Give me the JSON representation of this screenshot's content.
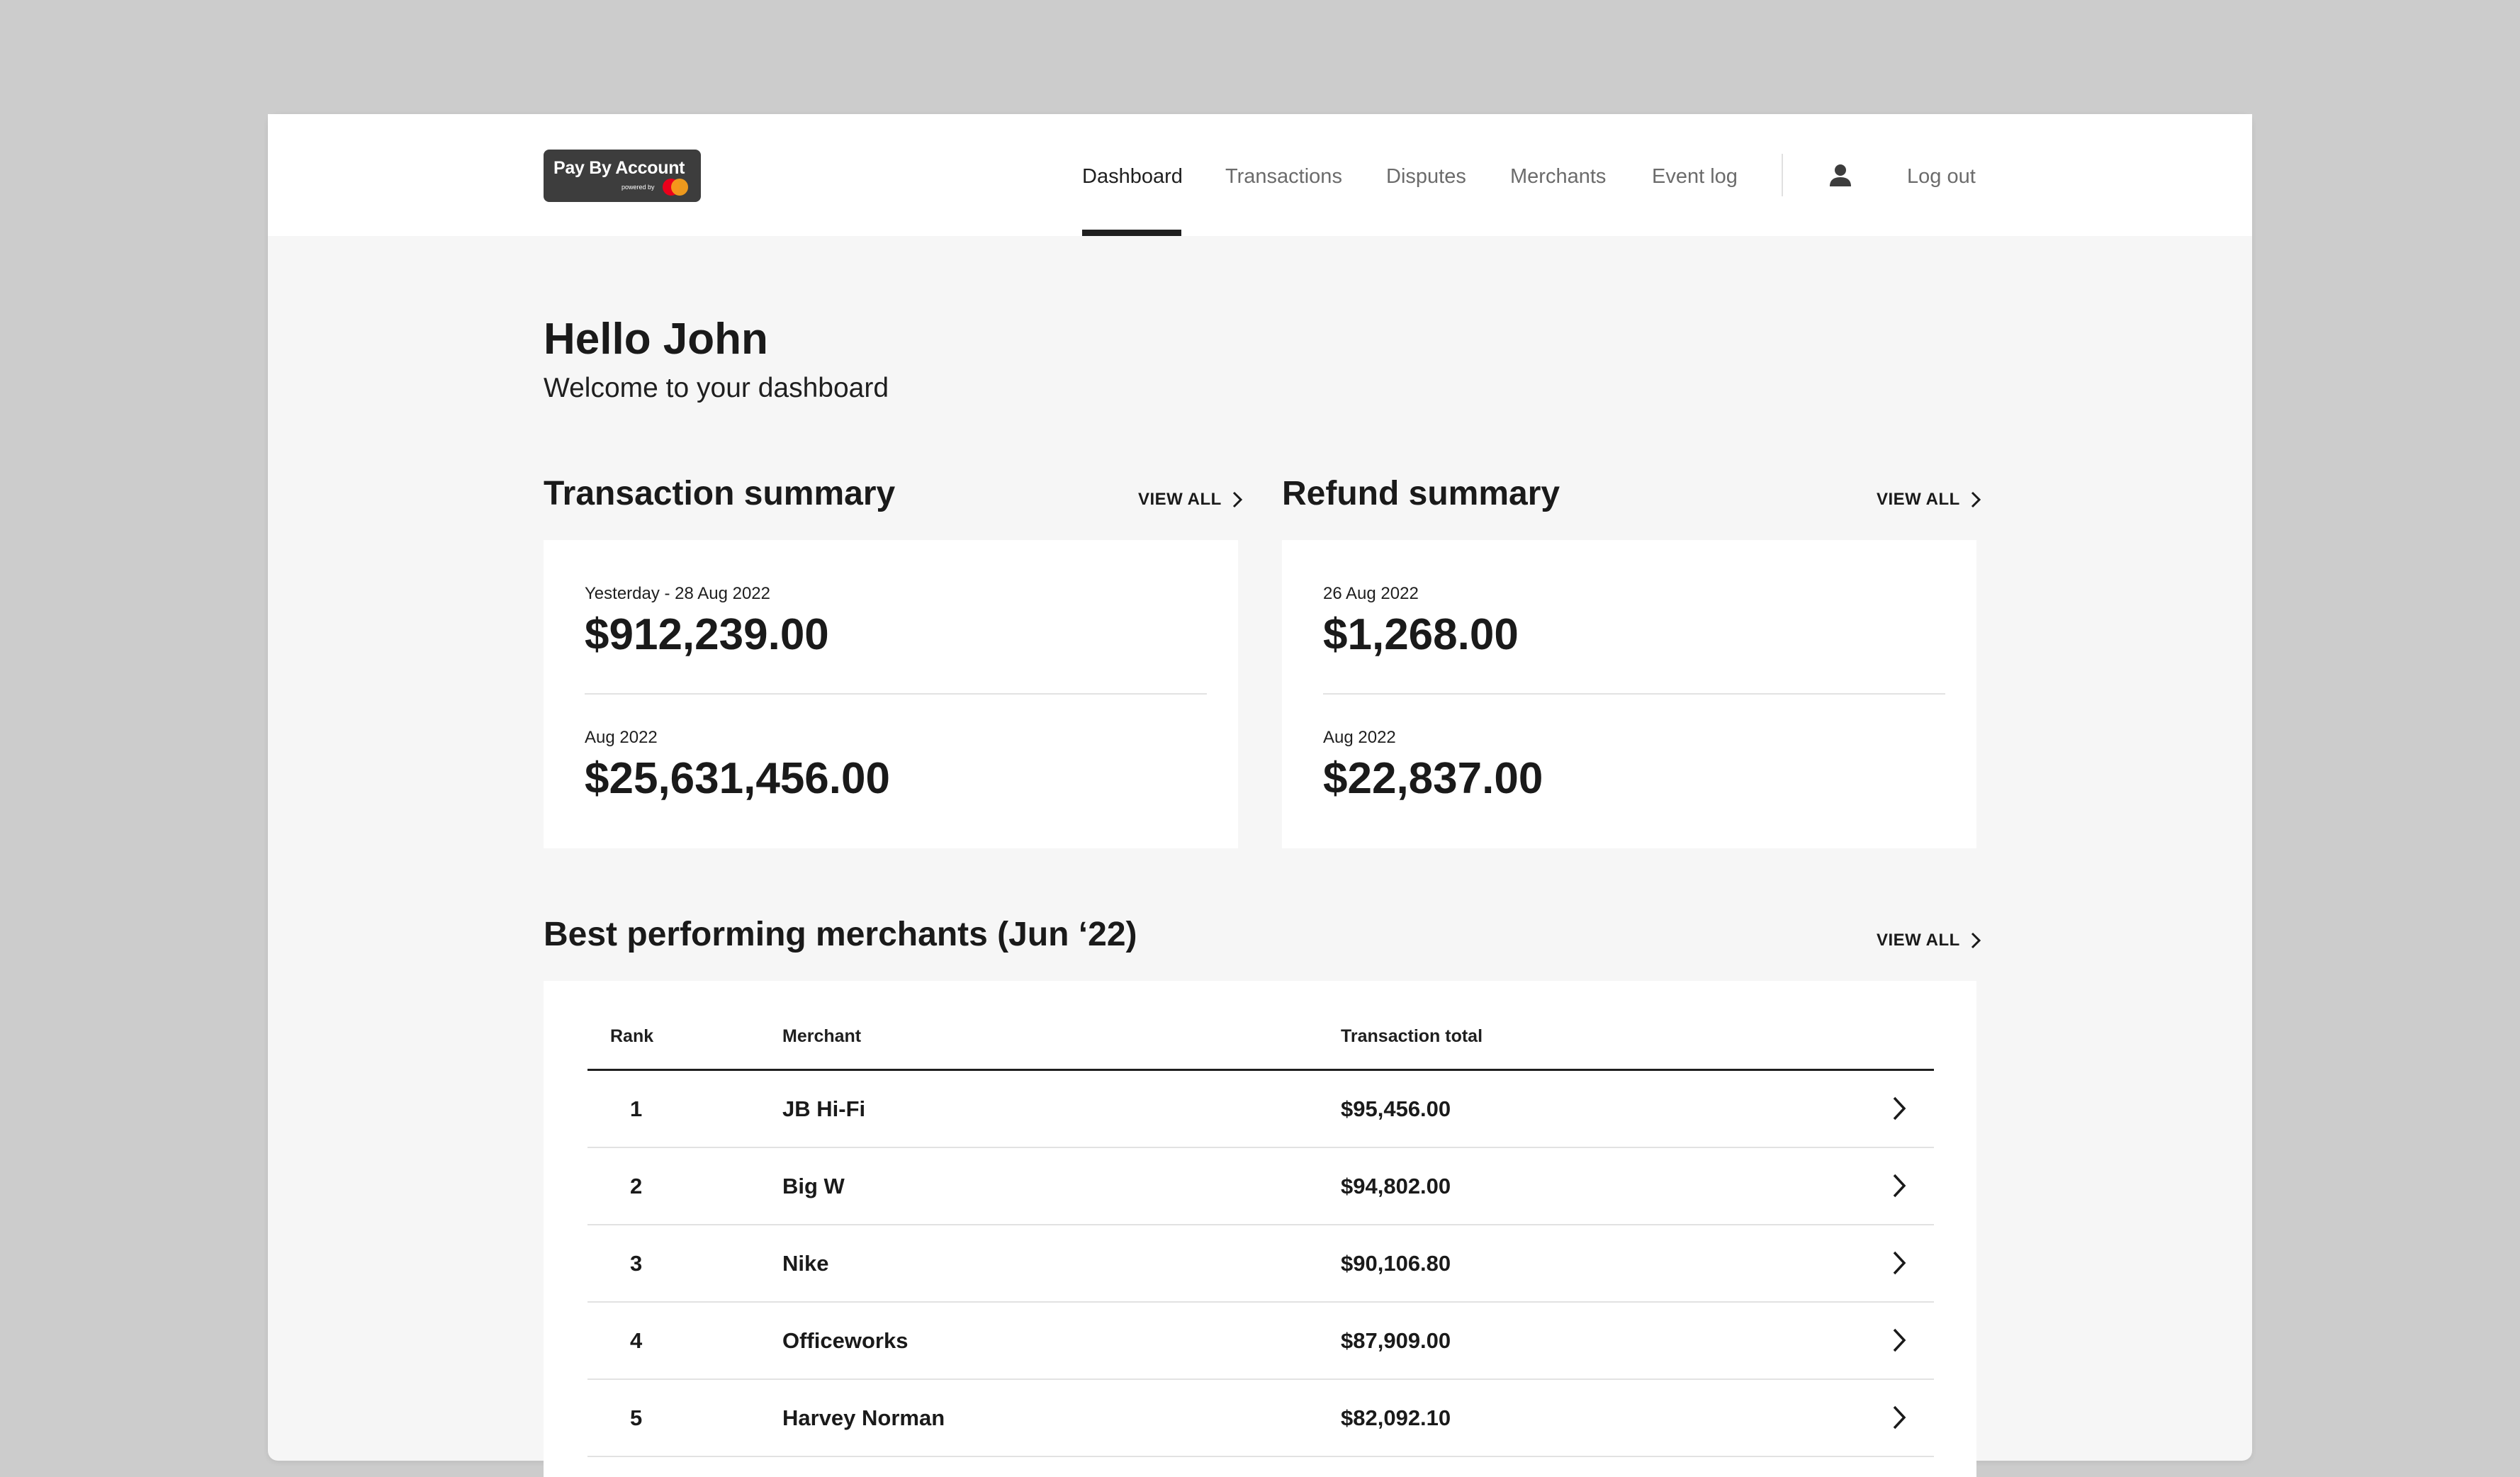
{
  "header": {
    "logo_text": "Pay By Account",
    "logo_sub": "powered by",
    "nav": [
      {
        "label": "Dashboard"
      },
      {
        "label": "Transactions"
      },
      {
        "label": "Disputes"
      },
      {
        "label": "Merchants"
      },
      {
        "label": "Event log"
      }
    ],
    "logout_label": "Log out"
  },
  "main": {
    "greeting": "Hello John",
    "subtitle": "Welcome to your dashboard",
    "view_all_label": "VIEW ALL",
    "transaction_summary": {
      "title": "Transaction summary",
      "stats": [
        {
          "label": "Yesterday - 28 Aug 2022",
          "value": "$912,239.00"
        },
        {
          "label": "Aug 2022",
          "value": "$25,631,456.00"
        }
      ]
    },
    "refund_summary": {
      "title": "Refund summary",
      "stats": [
        {
          "label": "26 Aug 2022",
          "value": "$1,268.00"
        },
        {
          "label": "Aug 2022",
          "value": "$22,837.00"
        }
      ]
    },
    "merchants": {
      "title": "Best performing merchants (Jun ‘22)",
      "columns": [
        "Rank",
        "Merchant",
        "Transaction total"
      ],
      "rows": [
        {
          "rank": "1",
          "merchant": "JB Hi-Fi",
          "total": "$95,456.00"
        },
        {
          "rank": "2",
          "merchant": "Big W",
          "total": "$94,802.00"
        },
        {
          "rank": "3",
          "merchant": "Nike",
          "total": "$90,106.80"
        },
        {
          "rank": "4",
          "merchant": "Officeworks",
          "total": "$87,909.00"
        },
        {
          "rank": "5",
          "merchant": "Harvey Norman",
          "total": "$82,092.10"
        }
      ]
    }
  }
}
